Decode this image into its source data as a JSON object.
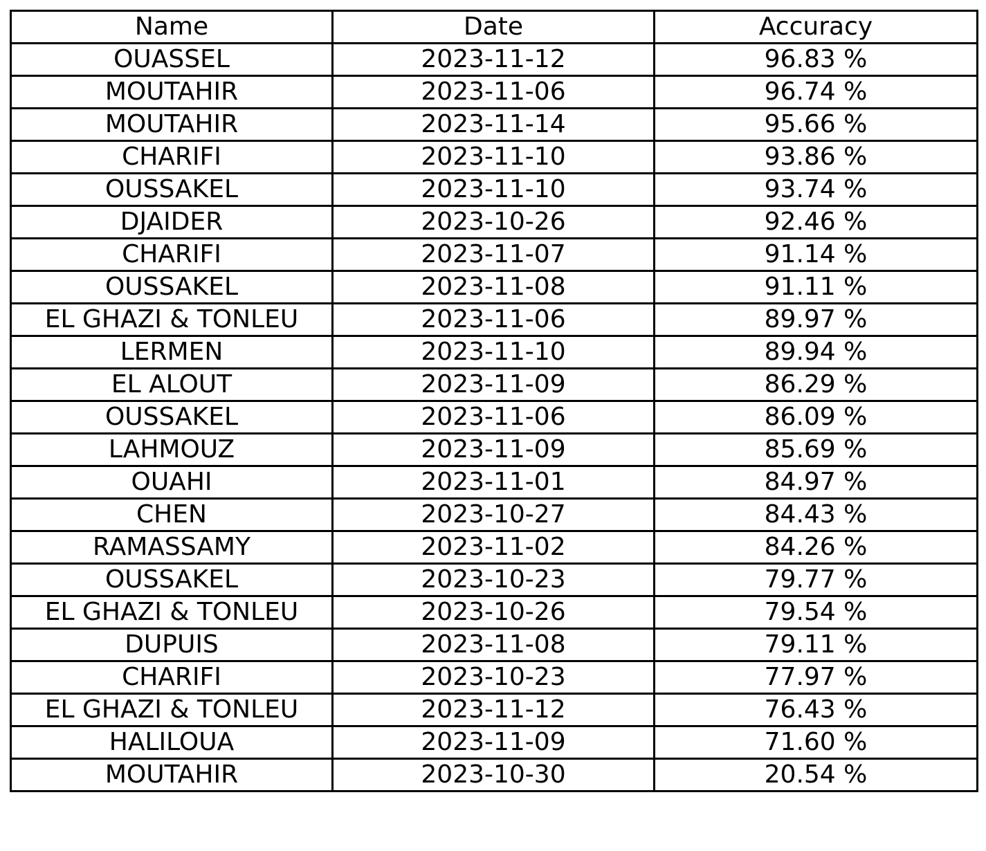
{
  "chart_data": {
    "type": "table",
    "columns": [
      "Name",
      "Date",
      "Accuracy"
    ],
    "rows": [
      [
        "OUASSEL",
        "2023-11-12",
        "96.83 %"
      ],
      [
        "MOUTAHIR",
        "2023-11-06",
        "96.74 %"
      ],
      [
        "MOUTAHIR",
        "2023-11-14",
        "95.66 %"
      ],
      [
        "CHARIFI",
        "2023-11-10",
        "93.86 %"
      ],
      [
        "OUSSAKEL",
        "2023-11-10",
        "93.74 %"
      ],
      [
        "DJAIDER",
        "2023-10-26",
        "92.46 %"
      ],
      [
        "CHARIFI",
        "2023-11-07",
        "91.14 %"
      ],
      [
        "OUSSAKEL",
        "2023-11-08",
        "91.11 %"
      ],
      [
        "EL GHAZI & TONLEU",
        "2023-11-06",
        "89.97 %"
      ],
      [
        "LERMEN",
        "2023-11-10",
        "89.94 %"
      ],
      [
        "EL ALOUT",
        "2023-11-09",
        "86.29 %"
      ],
      [
        "OUSSAKEL",
        "2023-11-06",
        "86.09 %"
      ],
      [
        "LAHMOUZ",
        "2023-11-09",
        "85.69 %"
      ],
      [
        "OUAHI",
        "2023-11-01",
        "84.97 %"
      ],
      [
        "CHEN",
        "2023-10-27",
        "84.43 %"
      ],
      [
        "RAMASSAMY",
        "2023-11-02",
        "84.26 %"
      ],
      [
        "OUSSAKEL",
        "2023-10-23",
        "79.77 %"
      ],
      [
        "EL GHAZI & TONLEU",
        "2023-10-26",
        "79.54 %"
      ],
      [
        "DUPUIS",
        "2023-11-08",
        "79.11 %"
      ],
      [
        "CHARIFI",
        "2023-10-23",
        "77.97 %"
      ],
      [
        "EL GHAZI & TONLEU",
        "2023-11-12",
        "76.43 %"
      ],
      [
        "HALILOUA",
        "2023-11-09",
        "71.60 %"
      ],
      [
        "MOUTAHIR",
        "2023-10-30",
        "20.54 %"
      ]
    ]
  }
}
